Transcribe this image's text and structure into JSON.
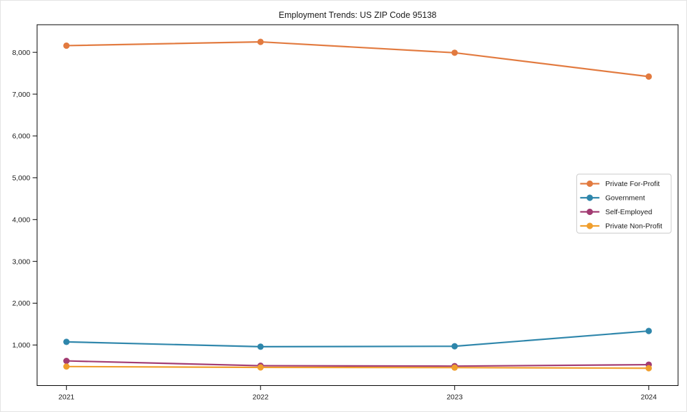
{
  "figure": {
    "background": "#ffffff",
    "spine_color": "#000000",
    "text_color": "#1a1a1a"
  },
  "chart_data": {
    "type": "line",
    "title": "Employment Trends: US ZIP Code 95138",
    "xlabel": "",
    "ylabel": "",
    "x": [
      2021,
      2022,
      2023,
      2024
    ],
    "xtick_labels": [
      "2021",
      "2022",
      "2023",
      "2024"
    ],
    "yticks": [
      1000,
      2000,
      3000,
      4000,
      5000,
      6000,
      7000,
      8000
    ],
    "ytick_labels": [
      "1,000",
      "2,000",
      "3,000",
      "4,000",
      "5,000",
      "6,000",
      "7,000",
      "8,000"
    ],
    "ylim": [
      30,
      8660
    ],
    "grid": false,
    "marker": "circle",
    "legend_position": "center right",
    "series": [
      {
        "name": "Private For-Profit",
        "color": "#E27A3F",
        "values": [
          8160,
          8250,
          7990,
          7420
        ]
      },
      {
        "name": "Government",
        "color": "#2E86AB",
        "values": [
          1075,
          960,
          970,
          1335
        ]
      },
      {
        "name": "Self-Employed",
        "color": "#A23B72",
        "values": [
          620,
          505,
          495,
          530
        ]
      },
      {
        "name": "Private Non-Profit",
        "color": "#F09E2C",
        "values": [
          485,
          465,
          460,
          445
        ]
      }
    ]
  }
}
